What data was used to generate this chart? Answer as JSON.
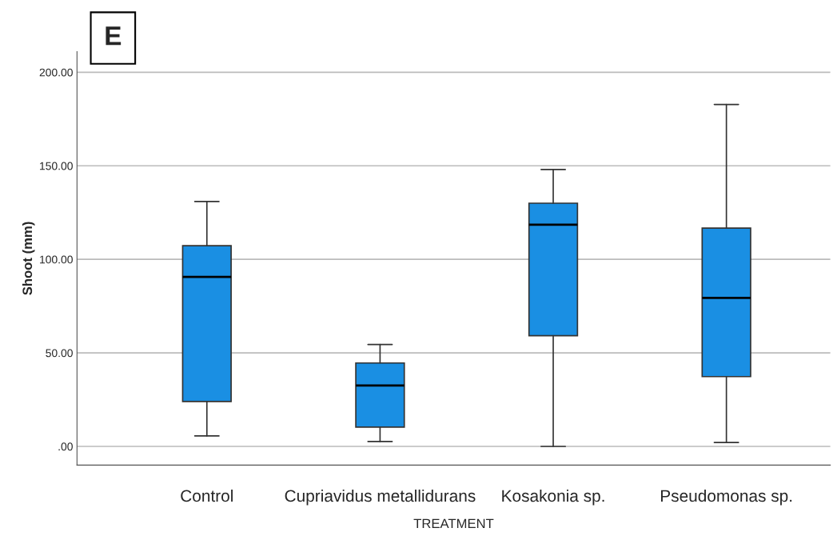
{
  "chart_data": {
    "type": "box",
    "xlabel": "TREATMENT",
    "ylabel": "Shoot (mm)",
    "categories": [
      "Control",
      "Cupriavidus metallidurans",
      "Kosakonia sp.",
      "Pseudomonas sp."
    ],
    "boxes": [
      {
        "low": 5.6,
        "q1": 24.0,
        "median": 90.6,
        "q3": 107.3,
        "high": 130.9
      },
      {
        "low": 2.6,
        "q1": 10.3,
        "median": 32.6,
        "q3": 44.6,
        "high": 54.5
      },
      {
        "low": 0,
        "q1": 59.2,
        "median": 118.5,
        "q3": 130,
        "high": 148
      },
      {
        "low": 2.1,
        "q1": 37.3,
        "median": 79.4,
        "q3": 116.7,
        "high": 182.8
      }
    ],
    "color": "#1a8fe3",
    "ylim": [
      -10,
      211
    ],
    "yticks": [
      {
        "value": 0,
        "label": ".00"
      },
      {
        "value": 50,
        "label": "50.00"
      },
      {
        "value": 100,
        "label": "100.00"
      },
      {
        "value": 150,
        "label": "150.00"
      },
      {
        "value": 200,
        "label": "200.00"
      }
    ],
    "grid": "y",
    "annotations": [
      "E"
    ]
  }
}
